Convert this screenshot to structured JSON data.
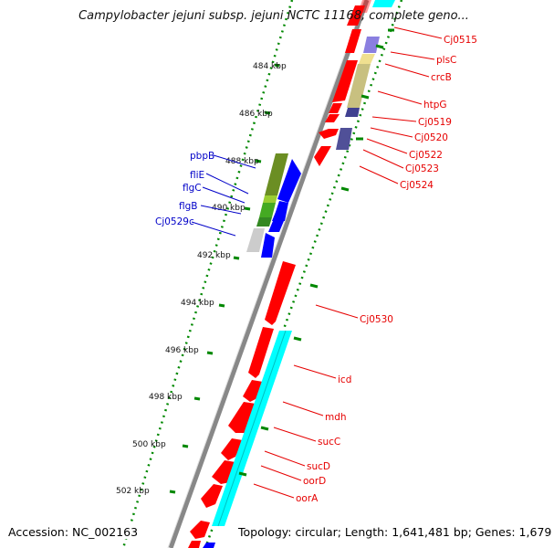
{
  "title": "Campylobacter jejuni subsp. jejuni NCTC 11168, complete geno...",
  "footer": {
    "accession": "Accession: NC_002163",
    "topology": "Topology: circular; Length: 1,641,481 bp; Genes: 1,679"
  },
  "ticks": [
    "484 kbp",
    "486 kbp",
    "488 kbp",
    "490 kbp",
    "492 kbp",
    "494 kbp",
    "496 kbp",
    "498 kbp",
    "500 kbp",
    "502 kbp"
  ],
  "right_labels": [
    "Cj0515",
    "plsC",
    "crcB",
    "htpG",
    "Cj0519",
    "Cj0520",
    "Cj0522",
    "Cj0523",
    "Cj0524",
    "Cj0530",
    "icd",
    "mdh",
    "sucC",
    "sucD",
    "oorD",
    "oorA"
  ],
  "left_labels": [
    "pbpB",
    "fliE",
    "flgC",
    "flgB",
    "Cj0529c"
  ],
  "colors": {
    "forward_strand": "#ff0000",
    "reverse_strand": "#0000ff",
    "cog_track": "#00ffff",
    "backbone": "#888888",
    "tick_dots": "#008800",
    "label_red": "#e60000",
    "label_blue": "#0000c8"
  }
}
